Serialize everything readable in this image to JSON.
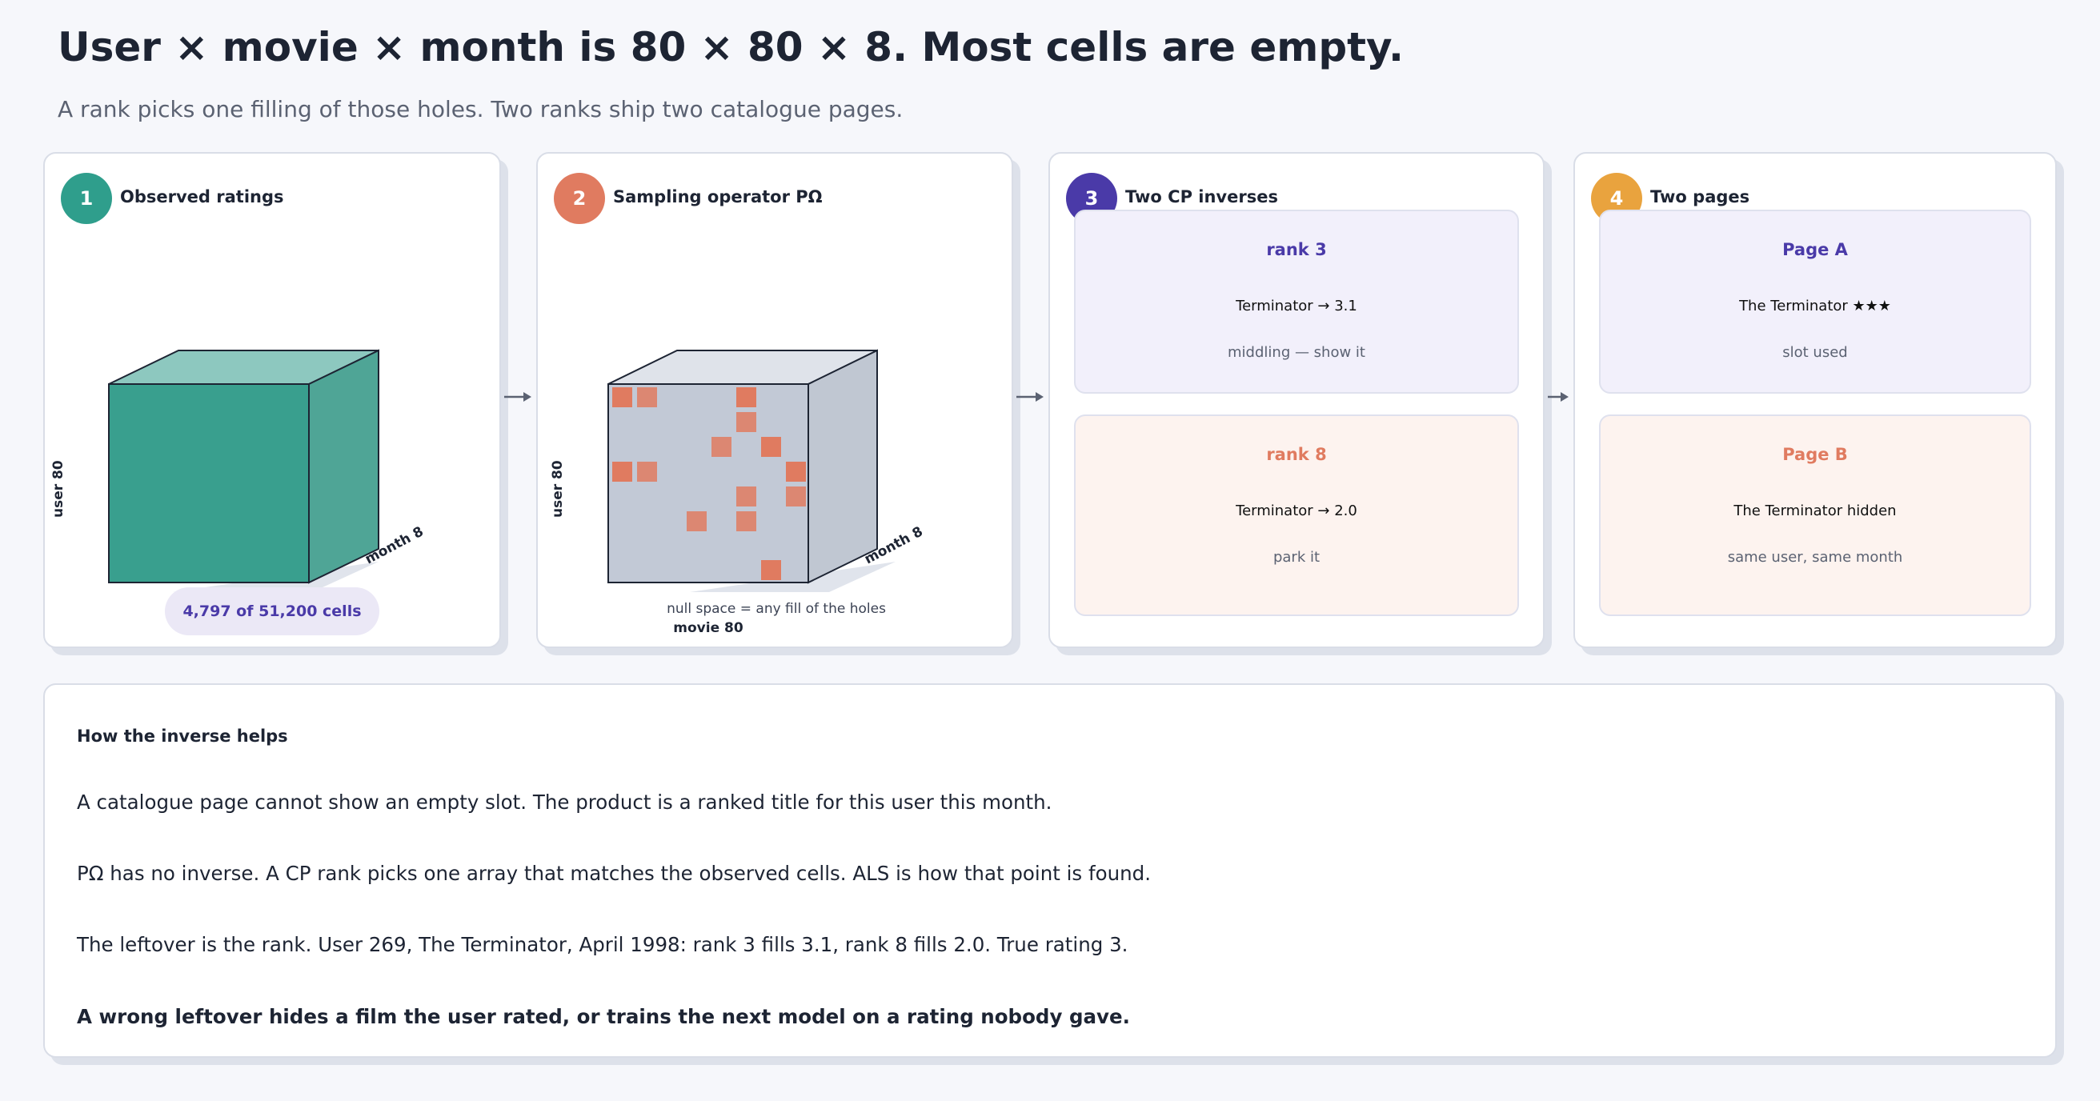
{
  "header": {
    "title": "User × movie × month is 80 × 80 × 8. Most cells are empty.",
    "subtitle": "A rank picks one filling of those holes. Two ranks ship two catalogue pages."
  },
  "colors": {
    "teal": "#2f9e8c",
    "coral": "#e07b60",
    "indigo": "#4a3aa8",
    "amber": "#e9a33e",
    "cube_gray": "#c2c9d6"
  },
  "panel1": {
    "number": "1",
    "title": "Observed ratings",
    "axis_user": "user  80",
    "axis_month": "month  8",
    "pill": "4,797 of 51,200 cells"
  },
  "panel2": {
    "number": "2",
    "title": "Sampling operator  PΩ",
    "axis_user": "user  80",
    "axis_month": "month  8",
    "axis_movie": "movie  80",
    "note": "null space = any fill of the holes"
  },
  "panel3": {
    "number": "3",
    "title": "Two CP inverses",
    "cards": [
      {
        "head": "rank 3",
        "main": "Terminator  →  3.1",
        "sub": "middling — show it"
      },
      {
        "head": "rank 8",
        "main": "Terminator  →  2.0",
        "sub": "park it"
      }
    ]
  },
  "panel4": {
    "number": "4",
    "title": "Two pages",
    "cards": [
      {
        "head": "Page A",
        "main": "The Terminator  ★★★",
        "sub": "slot used"
      },
      {
        "head": "Page B",
        "main": "The Terminator  hidden",
        "sub": "same user, same month"
      }
    ]
  },
  "explain": {
    "heading": "How the inverse helps",
    "lines": [
      "A catalogue page cannot show an empty slot. The product is a ranked title for this user this month.",
      "PΩ has no inverse. A CP rank picks one array that matches the observed cells. ALS is how that point is found.",
      "The leftover is the rank. User 269, The Terminator, April 1998: rank 3 fills 3.1, rank 8 fills 2.0. True rating 3."
    ],
    "conclusion": "A wrong leftover hides a film the user rated, or trains the next model on a rating nobody gave."
  }
}
